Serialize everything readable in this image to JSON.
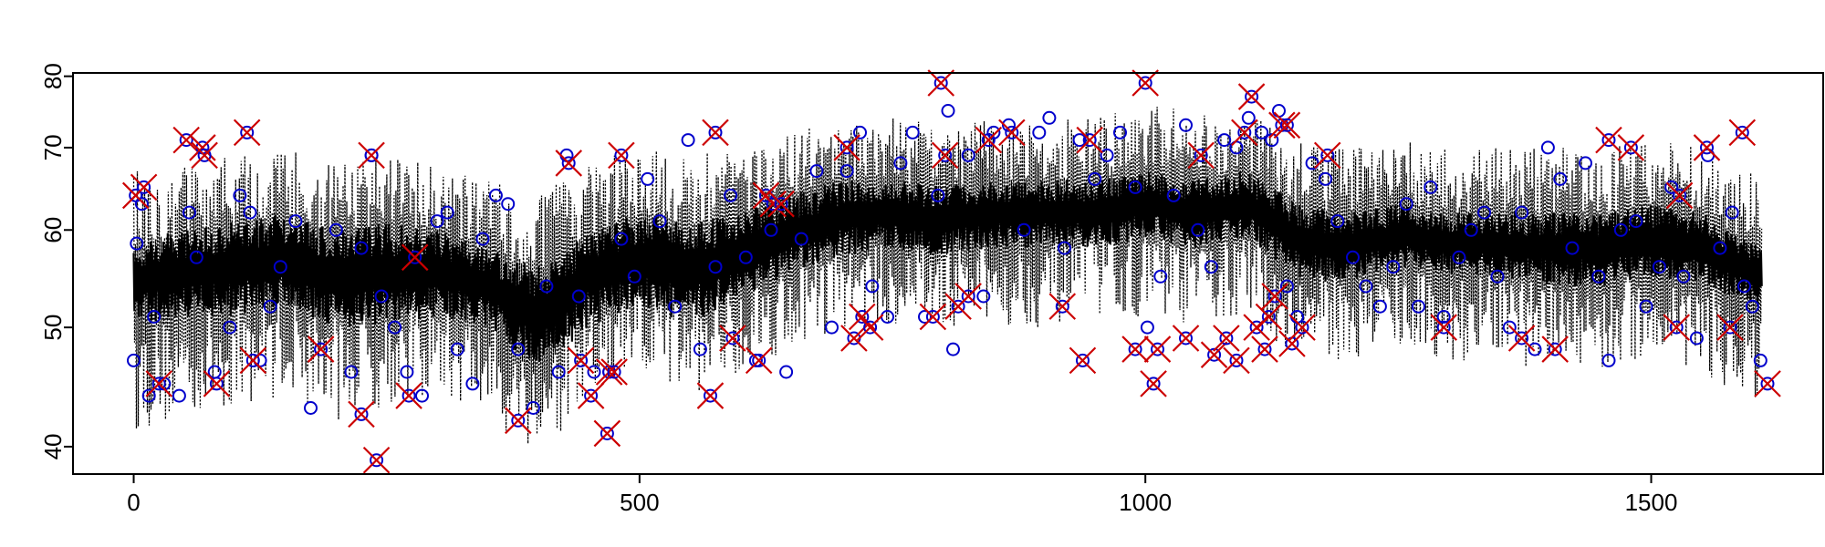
{
  "chart_data": {
    "type": "line",
    "title": "",
    "xlabel": "",
    "ylabel": "",
    "xlim": [
      -60,
      1670
    ],
    "ylim": [
      38,
      80.5
    ],
    "y_scale": "log",
    "grid": false,
    "legend": "none",
    "x_ticks": [
      0,
      500,
      1000,
      1500
    ],
    "x_tick_labels": [
      "0",
      "500",
      "1000",
      "1500"
    ],
    "y_ticks": [
      40,
      50,
      60,
      70,
      80
    ],
    "y_tick_labels": [
      "40",
      "50",
      "60",
      "70",
      "80"
    ],
    "colors": {
      "main_line": "#000000",
      "band_line": "#000000",
      "circle_points": "#0000cc",
      "cross_points": "#cc0000"
    },
    "series": [
      {
        "role": "center-band",
        "style": "solid",
        "x": [
          0,
          50,
          100,
          150,
          200,
          250,
          300,
          350,
          400,
          450,
          500,
          550,
          600,
          650,
          700,
          750,
          800,
          850,
          900,
          950,
          1000,
          1050,
          1100,
          1150,
          1200,
          1250,
          1300,
          1350,
          1400,
          1450,
          1500,
          1550,
          1610
        ],
        "lower": [
          50,
          51,
          51,
          52,
          50,
          50,
          51,
          50,
          46,
          50,
          52,
          50,
          53,
          55,
          57,
          58,
          57,
          58,
          58,
          58,
          59,
          58,
          59,
          55,
          54,
          56,
          55,
          55,
          54,
          54,
          55,
          54,
          52
        ],
        "upper": [
          59,
          60,
          61,
          62,
          60,
          61,
          60,
          58,
          56,
          60,
          62,
          61,
          62,
          64,
          66,
          66,
          65,
          66,
          66,
          66,
          67,
          66,
          67,
          63,
          62,
          63,
          62,
          62,
          62,
          62,
          63,
          62,
          58
        ]
      },
      {
        "role": "outer-band",
        "style": "dotted",
        "x": [
          0,
          50,
          100,
          150,
          200,
          250,
          300,
          350,
          400,
          450,
          500,
          550,
          600,
          650,
          700,
          750,
          800,
          850,
          900,
          950,
          1000,
          1050,
          1100,
          1150,
          1200,
          1250,
          1300,
          1350,
          1400,
          1450,
          1500,
          1550,
          1610
        ],
        "lower": [
          41,
          42,
          43,
          44,
          42,
          43,
          44,
          42,
          39,
          43,
          45,
          44,
          46,
          48,
          50,
          50,
          50,
          50,
          50,
          51,
          51,
          50,
          51,
          47,
          47,
          48,
          47,
          47,
          46,
          46,
          47,
          46,
          42
        ],
        "upper": [
          67,
          68,
          69,
          70,
          68,
          69,
          68,
          66,
          64,
          68,
          70,
          69,
          70,
          72,
          74,
          74,
          73,
          74,
          74,
          74,
          76,
          75,
          75,
          71,
          70,
          71,
          70,
          70,
          70,
          70,
          71,
          70,
          66
        ]
      },
      {
        "role": "circle-points",
        "marker": "circle",
        "points": [
          [
            0,
            47
          ],
          [
            3,
            58.5
          ],
          [
            8,
            63
          ],
          [
            15,
            44
          ],
          [
            20,
            51
          ],
          [
            30,
            45
          ],
          [
            45,
            44
          ],
          [
            55,
            62
          ],
          [
            62,
            57
          ],
          [
            80,
            46
          ],
          [
            95,
            50
          ],
          [
            105,
            64
          ],
          [
            115,
            62
          ],
          [
            125,
            47
          ],
          [
            135,
            52
          ],
          [
            145,
            56
          ],
          [
            160,
            61
          ],
          [
            175,
            43
          ],
          [
            185,
            48
          ],
          [
            200,
            60
          ],
          [
            215,
            46
          ],
          [
            225,
            58
          ],
          [
            235,
            69
          ],
          [
            245,
            53
          ],
          [
            258,
            50
          ],
          [
            270,
            46
          ],
          [
            285,
            44
          ],
          [
            300,
            61
          ],
          [
            310,
            62
          ],
          [
            320,
            48
          ],
          [
            335,
            45
          ],
          [
            345,
            59
          ],
          [
            358,
            64
          ],
          [
            370,
            63
          ],
          [
            380,
            48
          ],
          [
            395,
            43
          ],
          [
            408,
            54
          ],
          [
            420,
            46
          ],
          [
            428,
            69
          ],
          [
            440,
            53
          ],
          [
            455,
            46
          ],
          [
            470,
            46
          ],
          [
            482,
            59
          ],
          [
            495,
            55
          ],
          [
            508,
            66
          ],
          [
            520,
            61
          ],
          [
            535,
            52
          ],
          [
            548,
            71
          ],
          [
            560,
            48
          ],
          [
            575,
            56
          ],
          [
            590,
            64
          ],
          [
            605,
            57
          ],
          [
            615,
            47
          ],
          [
            630,
            60
          ],
          [
            645,
            46
          ],
          [
            660,
            59
          ],
          [
            675,
            67
          ],
          [
            690,
            50
          ],
          [
            705,
            67
          ],
          [
            718,
            72
          ],
          [
            730,
            54
          ],
          [
            745,
            51
          ],
          [
            758,
            68
          ],
          [
            770,
            72
          ],
          [
            782,
            51
          ],
          [
            795,
            64
          ],
          [
            805,
            75
          ],
          [
            810,
            48
          ],
          [
            825,
            69
          ],
          [
            840,
            53
          ],
          [
            850,
            72
          ],
          [
            865,
            73
          ],
          [
            880,
            60
          ],
          [
            895,
            72
          ],
          [
            905,
            74
          ],
          [
            920,
            58
          ],
          [
            935,
            71
          ],
          [
            950,
            66
          ],
          [
            962,
            69
          ],
          [
            975,
            72
          ],
          [
            990,
            65
          ],
          [
            1002,
            50
          ],
          [
            1015,
            55
          ],
          [
            1028,
            64
          ],
          [
            1040,
            73
          ],
          [
            1052,
            60
          ],
          [
            1065,
            56
          ],
          [
            1078,
            71
          ],
          [
            1090,
            70
          ],
          [
            1102,
            74
          ],
          [
            1115,
            72
          ],
          [
            1125,
            71
          ],
          [
            1132,
            75
          ],
          [
            1140,
            54
          ],
          [
            1150,
            51
          ],
          [
            1165,
            68
          ],
          [
            1178,
            66
          ],
          [
            1190,
            61
          ],
          [
            1205,
            57
          ],
          [
            1218,
            54
          ],
          [
            1232,
            52
          ],
          [
            1245,
            56
          ],
          [
            1258,
            63
          ],
          [
            1270,
            52
          ],
          [
            1282,
            65
          ],
          [
            1295,
            51
          ],
          [
            1310,
            57
          ],
          [
            1322,
            60
          ],
          [
            1335,
            62
          ],
          [
            1348,
            55
          ],
          [
            1360,
            50
          ],
          [
            1372,
            62
          ],
          [
            1385,
            48
          ],
          [
            1398,
            70
          ],
          [
            1410,
            66
          ],
          [
            1422,
            58
          ],
          [
            1435,
            68
          ],
          [
            1448,
            55
          ],
          [
            1458,
            47
          ],
          [
            1470,
            60
          ],
          [
            1485,
            61
          ],
          [
            1495,
            52
          ],
          [
            1508,
            56
          ],
          [
            1520,
            65
          ],
          [
            1532,
            55
          ],
          [
            1545,
            49
          ],
          [
            1556,
            69
          ],
          [
            1568,
            58
          ],
          [
            1580,
            62
          ],
          [
            1592,
            54
          ],
          [
            1600,
            52
          ],
          [
            1608,
            47
          ]
        ]
      },
      {
        "role": "cross-points",
        "marker": "cross",
        "points": [
          [
            2,
            64
          ],
          [
            10,
            65
          ],
          [
            25,
            45
          ],
          [
            52,
            71
          ],
          [
            68,
            70
          ],
          [
            70,
            69
          ],
          [
            82,
            45
          ],
          [
            112,
            72
          ],
          [
            118,
            47
          ],
          [
            185,
            48
          ],
          [
            225,
            42.5
          ],
          [
            235,
            69
          ],
          [
            240,
            39
          ],
          [
            272,
            44
          ],
          [
            278,
            57
          ],
          [
            380,
            42
          ],
          [
            430,
            68
          ],
          [
            442,
            47
          ],
          [
            452,
            44
          ],
          [
            468,
            41
          ],
          [
            470,
            46
          ],
          [
            475,
            46
          ],
          [
            482,
            69
          ],
          [
            570,
            44
          ],
          [
            575,
            72
          ],
          [
            592,
            49
          ],
          [
            618,
            47
          ],
          [
            625,
            64
          ],
          [
            632,
            63
          ],
          [
            640,
            63
          ],
          [
            705,
            70
          ],
          [
            712,
            49
          ],
          [
            720,
            51
          ],
          [
            728,
            50
          ],
          [
            790,
            51
          ],
          [
            798,
            79
          ],
          [
            802,
            69
          ],
          [
            815,
            52
          ],
          [
            825,
            53
          ],
          [
            845,
            71
          ],
          [
            868,
            72
          ],
          [
            918,
            52
          ],
          [
            938,
            47
          ],
          [
            945,
            71
          ],
          [
            990,
            48
          ],
          [
            1000,
            79
          ],
          [
            1008,
            45
          ],
          [
            1012,
            48
          ],
          [
            1040,
            49
          ],
          [
            1055,
            69
          ],
          [
            1068,
            47.5
          ],
          [
            1080,
            49
          ],
          [
            1090,
            47
          ],
          [
            1098,
            72
          ],
          [
            1105,
            77
          ],
          [
            1110,
            50
          ],
          [
            1118,
            48
          ],
          [
            1122,
            51
          ],
          [
            1128,
            53
          ],
          [
            1135,
            73
          ],
          [
            1140,
            73
          ],
          [
            1145,
            48.5
          ],
          [
            1155,
            50
          ],
          [
            1180,
            69
          ],
          [
            1295,
            50
          ],
          [
            1372,
            49
          ],
          [
            1405,
            48
          ],
          [
            1458,
            71
          ],
          [
            1480,
            70
          ],
          [
            1525,
            50
          ],
          [
            1528,
            64
          ],
          [
            1555,
            70
          ],
          [
            1578,
            50
          ],
          [
            1590,
            72
          ],
          [
            1615,
            45
          ]
        ]
      }
    ]
  }
}
